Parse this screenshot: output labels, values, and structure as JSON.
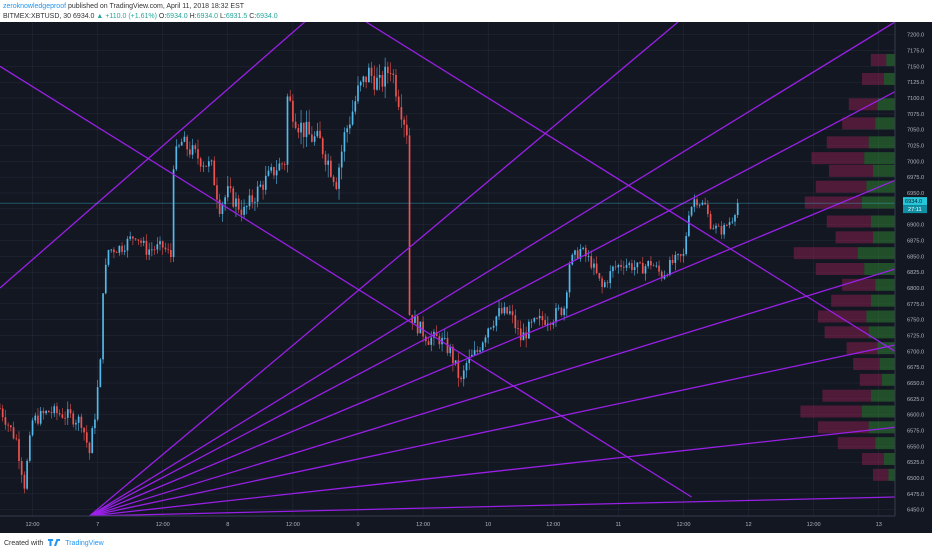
{
  "header": {
    "author": "zeroknowledgeproof",
    "published": "published on TradingView.com, April 11, 2018 18:32 EST",
    "symbol": "BITMEX:XBTUSD, 30",
    "last": "6934.0",
    "change": "+110.0 (+1.61%)",
    "open_label": "O:",
    "open": "6934.0",
    "high_label": "H:",
    "high": "6934.0",
    "low_label": "L:",
    "low": "6931.5",
    "close_label": "C:",
    "close": "6934.0"
  },
  "footer": {
    "created": "Created with",
    "brand": "TradingView"
  },
  "colors": {
    "background": "#131722",
    "grid": "#363c4e",
    "up": "#53b9ea",
    "down": "#ef5350",
    "trendline": "#a020f0",
    "price_line": "#3cc6e8",
    "axis_text": "#b2b5be"
  },
  "chart_data": {
    "type": "candlestick",
    "ylim": [
      6440,
      7220
    ],
    "yticks": [
      6450,
      6475,
      6500,
      6525,
      6550,
      6575,
      6600,
      6625,
      6650,
      6675,
      6700,
      6725,
      6750,
      6775,
      6800,
      6825,
      6850,
      6875,
      6900,
      6925,
      6950,
      6975,
      7000,
      7025,
      7050,
      7075,
      7100,
      7125,
      7150,
      7175,
      7200
    ],
    "ytick_labels": [
      "6450.0",
      "6475.0",
      "6500.0",
      "6525.0",
      "6550.0",
      "6575.0",
      "6600.0",
      "6625.0",
      "6650.0",
      "6675.0",
      "6700.0",
      "6725.0",
      "6750.0",
      "6775.0",
      "6800.0",
      "6825.0",
      "6850.0",
      "6875.0",
      "6900.0",
      "6925.0",
      "6950.0",
      "6975.0",
      "7000.0",
      "7025.0",
      "7050.0",
      "7075.0",
      "7100.0",
      "7125.0",
      "7150.0",
      "7175.0",
      "7200.0"
    ],
    "xlim": [
      0,
      330
    ],
    "xticks": [
      {
        "x": 12,
        "label": "12:00"
      },
      {
        "x": 36,
        "label": "7"
      },
      {
        "x": 60,
        "label": "12:00"
      },
      {
        "x": 84,
        "label": "8"
      },
      {
        "x": 108,
        "label": "12:00"
      },
      {
        "x": 132,
        "label": "9"
      },
      {
        "x": 156,
        "label": "12:00"
      },
      {
        "x": 180,
        "label": "10"
      },
      {
        "x": 204,
        "label": "12:00"
      },
      {
        "x": 228,
        "label": "11"
      },
      {
        "x": 252,
        "label": "12:00"
      },
      {
        "x": 276,
        "label": "12"
      },
      {
        "x": 300,
        "label": "12:00"
      },
      {
        "x": 324,
        "label": "13"
      }
    ],
    "current_price": 6934.0,
    "current_price_label": "6934.0",
    "countdown_label": "27:11",
    "price_path": [
      [
        0,
        6610
      ],
      [
        6,
        6560
      ],
      [
        9,
        6490
      ],
      [
        12,
        6590
      ],
      [
        18,
        6605
      ],
      [
        24,
        6600
      ],
      [
        30,
        6590
      ],
      [
        33,
        6540
      ],
      [
        35,
        6600
      ],
      [
        37,
        6680
      ],
      [
        38,
        6800
      ],
      [
        40,
        6860
      ],
      [
        45,
        6865
      ],
      [
        50,
        6885
      ],
      [
        54,
        6860
      ],
      [
        60,
        6865
      ],
      [
        63,
        6850
      ],
      [
        64,
        7000
      ],
      [
        67,
        7030
      ],
      [
        72,
        7010
      ],
      [
        78,
        6990
      ],
      [
        81,
        6930
      ],
      [
        84,
        6950
      ],
      [
        90,
        6920
      ],
      [
        96,
        6960
      ],
      [
        102,
        6990
      ],
      [
        105,
        7000
      ],
      [
        106,
        7100
      ],
      [
        110,
        7060
      ],
      [
        114,
        7040
      ],
      [
        118,
        7030
      ],
      [
        122,
        6990
      ],
      [
        124,
        6970
      ],
      [
        127,
        7040
      ],
      [
        130,
        7080
      ],
      [
        132,
        7110
      ],
      [
        136,
        7140
      ],
      [
        140,
        7120
      ],
      [
        144,
        7150
      ],
      [
        147,
        7100
      ],
      [
        150,
        7050
      ],
      [
        151,
        6760
      ],
      [
        154,
        6740
      ],
      [
        158,
        6720
      ],
      [
        162,
        6720
      ],
      [
        166,
        6700
      ],
      [
        170,
        6650
      ],
      [
        172,
        6680
      ],
      [
        176,
        6700
      ],
      [
        180,
        6740
      ],
      [
        184,
        6760
      ],
      [
        188,
        6760
      ],
      [
        192,
        6720
      ],
      [
        196,
        6740
      ],
      [
        200,
        6750
      ],
      [
        204,
        6755
      ],
      [
        208,
        6770
      ],
      [
        210,
        6840
      ],
      [
        214,
        6860
      ],
      [
        218,
        6840
      ],
      [
        222,
        6800
      ],
      [
        226,
        6830
      ],
      [
        230,
        6840
      ],
      [
        236,
        6830
      ],
      [
        240,
        6840
      ],
      [
        244,
        6820
      ],
      [
        248,
        6840
      ],
      [
        252,
        6850
      ],
      [
        254,
        6920
      ],
      [
        256,
        6940
      ],
      [
        260,
        6930
      ],
      [
        262,
        6900
      ],
      [
        266,
        6890
      ],
      [
        270,
        6910
      ],
      [
        272,
        6934
      ]
    ],
    "volatility_zones": [
      {
        "from": 0,
        "to": 38,
        "amp": 22
      },
      {
        "from": 38,
        "to": 64,
        "amp": 20
      },
      {
        "from": 64,
        "to": 106,
        "amp": 28
      },
      {
        "from": 106,
        "to": 151,
        "amp": 35
      },
      {
        "from": 151,
        "to": 210,
        "amp": 24
      },
      {
        "from": 210,
        "to": 254,
        "amp": 20
      },
      {
        "from": 254,
        "to": 273,
        "amp": 14
      }
    ],
    "trendlines": [
      {
        "x1": 0,
        "y1": 7150,
        "x2": 255,
        "y2": 6470
      },
      {
        "x1": 0,
        "y1": 6800,
        "x2": 115,
        "y2": 7230
      },
      {
        "x1": 135,
        "y1": 7220,
        "x2": 330,
        "y2": 6700
      },
      {
        "x1": 33,
        "y1": 6440,
        "x2": 250,
        "y2": 7220
      },
      {
        "x1": 33,
        "y1": 6440,
        "x2": 330,
        "y2": 7220
      },
      {
        "x1": 33,
        "y1": 6440,
        "x2": 330,
        "y2": 7110
      },
      {
        "x1": 33,
        "y1": 6440,
        "x2": 330,
        "y2": 6970
      },
      {
        "x1": 33,
        "y1": 6440,
        "x2": 330,
        "y2": 6830
      },
      {
        "x1": 33,
        "y1": 6440,
        "x2": 330,
        "y2": 6710
      },
      {
        "x1": 33,
        "y1": 6440,
        "x2": 330,
        "y2": 6580
      },
      {
        "x1": 33,
        "y1": 6440,
        "x2": 330,
        "y2": 6470
      }
    ],
    "volume_profile": [
      {
        "price": 7160,
        "up": 8,
        "down": 14
      },
      {
        "price": 7130,
        "up": 10,
        "down": 20
      },
      {
        "price": 7090,
        "up": 16,
        "down": 26
      },
      {
        "price": 7060,
        "up": 18,
        "down": 30
      },
      {
        "price": 7030,
        "up": 24,
        "down": 38
      },
      {
        "price": 7005,
        "up": 28,
        "down": 48
      },
      {
        "price": 6985,
        "up": 20,
        "down": 40
      },
      {
        "price": 6960,
        "up": 26,
        "down": 46
      },
      {
        "price": 6935,
        "up": 30,
        "down": 52
      },
      {
        "price": 6905,
        "up": 22,
        "down": 40
      },
      {
        "price": 6880,
        "up": 20,
        "down": 34
      },
      {
        "price": 6855,
        "up": 34,
        "down": 58
      },
      {
        "price": 6830,
        "up": 28,
        "down": 44
      },
      {
        "price": 6805,
        "up": 18,
        "down": 30
      },
      {
        "price": 6780,
        "up": 22,
        "down": 36
      },
      {
        "price": 6755,
        "up": 26,
        "down": 44
      },
      {
        "price": 6730,
        "up": 24,
        "down": 40
      },
      {
        "price": 6705,
        "up": 16,
        "down": 28
      },
      {
        "price": 6680,
        "up": 14,
        "down": 24
      },
      {
        "price": 6655,
        "up": 12,
        "down": 20
      },
      {
        "price": 6630,
        "up": 22,
        "down": 44
      },
      {
        "price": 6605,
        "up": 30,
        "down": 56
      },
      {
        "price": 6580,
        "up": 24,
        "down": 46
      },
      {
        "price": 6555,
        "up": 18,
        "down": 34
      },
      {
        "price": 6530,
        "up": 10,
        "down": 20
      },
      {
        "price": 6505,
        "up": 6,
        "down": 14
      }
    ]
  }
}
